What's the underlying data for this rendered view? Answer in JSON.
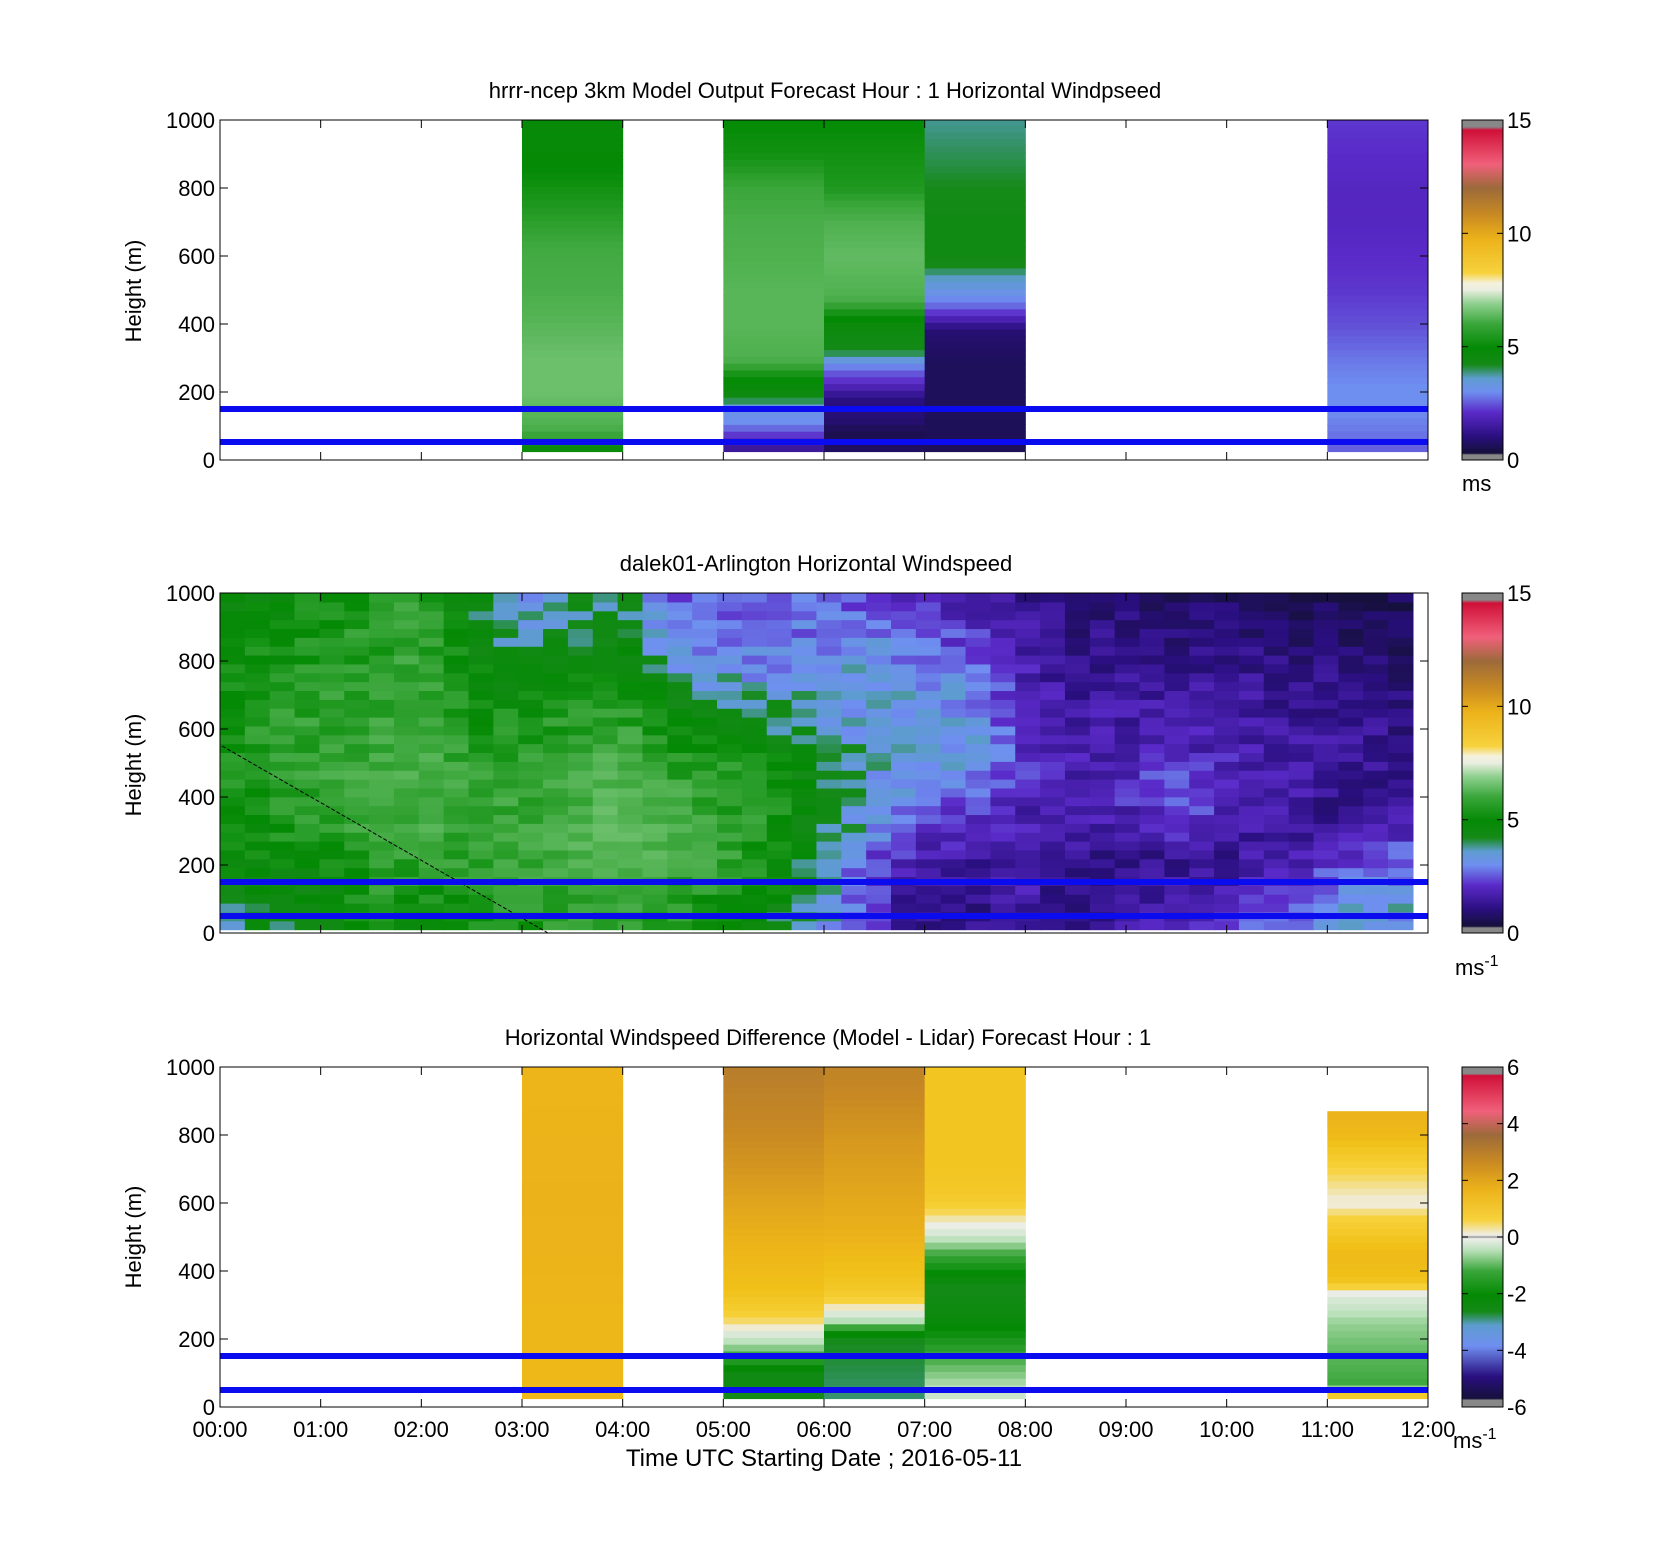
{
  "chart_data": [
    {
      "type": "heatmap",
      "title": "hrrr-ncep 3km Model Output   Forecast Hour : 1 Horizontal Windpseed",
      "xlabel": "",
      "ylabel": "Height (m)",
      "xlim": [
        0,
        12
      ],
      "ylim": [
        0,
        1000
      ],
      "yticks": [
        "0",
        "200",
        "400",
        "600",
        "800",
        "1000"
      ],
      "colorbar": {
        "min": 0,
        "max": 15,
        "ticks": [
          "0",
          "5",
          "10",
          "15"
        ],
        "unit": "ms",
        "unit_sup": "",
        "kind": "speed"
      },
      "reference_lines_m": [
        50,
        150
      ],
      "columns": [
        {
          "hour": 3,
          "bottom": 25,
          "stops": [
            [
              25,
              3.6
            ],
            [
              50,
              4.8
            ],
            [
              100,
              5.6
            ],
            [
              200,
              6.2
            ],
            [
              300,
              6.2
            ],
            [
              400,
              5.8
            ],
            [
              500,
              5.5
            ],
            [
              600,
              5.4
            ],
            [
              700,
              5.0
            ],
            [
              800,
              4.6
            ],
            [
              900,
              4.3
            ],
            [
              1000,
              4.2
            ]
          ]
        },
        {
          "hour": 5,
          "bottom": 25,
          "stops": [
            [
              25,
              1.2
            ],
            [
              60,
              1.8
            ],
            [
              110,
              2.8
            ],
            [
              150,
              3.0
            ],
            [
              200,
              4.0
            ],
            [
              250,
              4.6
            ],
            [
              300,
              5.6
            ],
            [
              400,
              5.8
            ],
            [
              500,
              5.8
            ],
            [
              600,
              5.6
            ],
            [
              700,
              5.5
            ],
            [
              800,
              5.2
            ],
            [
              900,
              4.6
            ],
            [
              1000,
              4.4
            ]
          ]
        },
        {
          "hour": 6,
          "bottom": 25,
          "stops": [
            [
              25,
              0.6
            ],
            [
              80,
              0.3
            ],
            [
              120,
              0.8
            ],
            [
              180,
              1.0
            ],
            [
              230,
              2.0
            ],
            [
              260,
              2.4
            ],
            [
              320,
              3.6
            ],
            [
              380,
              3.9
            ],
            [
              420,
              4.4
            ],
            [
              480,
              5.6
            ],
            [
              600,
              6.0
            ],
            [
              700,
              5.6
            ],
            [
              800,
              4.8
            ],
            [
              1000,
              4.4
            ]
          ]
        },
        {
          "hour": 7,
          "bottom": 25,
          "stops": [
            [
              25,
              0.4
            ],
            [
              300,
              0.5
            ],
            [
              380,
              0.8
            ],
            [
              420,
              1.8
            ],
            [
              460,
              2.6
            ],
            [
              520,
              3.2
            ],
            [
              600,
              3.8
            ],
            [
              700,
              3.8
            ],
            [
              800,
              3.6
            ],
            [
              900,
              3.5
            ],
            [
              1000,
              3.4
            ]
          ]
        },
        {
          "hour": 11,
          "bottom": 25,
          "stops": [
            [
              25,
              2.4
            ],
            [
              80,
              2.6
            ],
            [
              150,
              2.8
            ],
            [
              220,
              2.8
            ],
            [
              300,
              2.6
            ],
            [
              400,
              2.3
            ],
            [
              500,
              2.1
            ],
            [
              600,
              2.0
            ],
            [
              700,
              1.9
            ],
            [
              800,
              1.9
            ],
            [
              900,
              2.0
            ],
            [
              1000,
              2.1
            ]
          ]
        }
      ]
    },
    {
      "type": "heatmap",
      "title": "dalek01-Arlington  Horizontal Windspeed",
      "xlabel": "",
      "ylabel": "Height (m)",
      "xlim": [
        0,
        12
      ],
      "ylim": [
        0,
        1000
      ],
      "yticks": [
        "0",
        "200",
        "400",
        "600",
        "800",
        "1000"
      ],
      "colorbar": {
        "min": 0,
        "max": 15,
        "ticks": [
          "0",
          "5",
          "10",
          "15"
        ],
        "unit": "ms",
        "unit_sup": "-1",
        "kind": "speed"
      },
      "reference_lines_m": [
        50,
        150
      ],
      "profile_hours": [
        0.0,
        0.5,
        1.0,
        1.5,
        2.0,
        2.5,
        3.0,
        3.5,
        4.0,
        4.5,
        5.0,
        5.5,
        6.0,
        6.5,
        7.0,
        7.5,
        8.0,
        8.5,
        9.0,
        9.5,
        10.0,
        10.5,
        11.0,
        11.5,
        11.9
      ],
      "profile_heights": [
        0,
        100,
        200,
        300,
        400,
        500,
        600,
        700,
        800,
        900,
        1000
      ],
      "profiles": [
        [
          3.5,
          3.8,
          4.2,
          4.4,
          4.5,
          4.6,
          4.5,
          4.4,
          4.3,
          4.1,
          3.8
        ],
        [
          3.8,
          4.0,
          4.2,
          4.6,
          4.8,
          5.0,
          5.0,
          4.8,
          4.6,
          4.5,
          4.3
        ],
        [
          3.6,
          4.0,
          4.4,
          4.8,
          5.0,
          5.2,
          5.1,
          5.0,
          4.8,
          4.6,
          4.5
        ],
        [
          4.6,
          4.8,
          5.0,
          5.2,
          5.4,
          5.3,
          5.2,
          5.1,
          5.0,
          4.9,
          4.8
        ],
        [
          4.2,
          4.6,
          5.0,
          5.4,
          5.6,
          5.6,
          5.4,
          5.3,
          5.2,
          5.1,
          5.0
        ],
        [
          4.4,
          4.8,
          5.0,
          5.2,
          5.2,
          5.0,
          4.8,
          4.6,
          4.2,
          4.0,
          3.8
        ],
        [
          4.6,
          5.0,
          5.2,
          5.3,
          5.2,
          5.0,
          4.8,
          4.2,
          3.6,
          3.2,
          3.0
        ],
        [
          4.8,
          5.2,
          5.4,
          5.6,
          5.4,
          5.2,
          5.0,
          4.6,
          4.0,
          3.6,
          3.4
        ],
        [
          4.8,
          5.2,
          5.6,
          6.0,
          5.8,
          5.6,
          5.2,
          4.8,
          4.2,
          3.8,
          3.6
        ],
        [
          4.6,
          5.0,
          5.4,
          5.6,
          5.4,
          5.0,
          4.4,
          3.6,
          3.0,
          2.6,
          2.4
        ],
        [
          4.0,
          4.6,
          5.0,
          5.2,
          5.0,
          4.8,
          4.2,
          3.4,
          2.8,
          2.4,
          2.2
        ],
        [
          3.6,
          4.2,
          4.6,
          4.8,
          4.8,
          4.4,
          3.8,
          3.2,
          2.8,
          2.5,
          2.3
        ],
        [
          3.0,
          3.4,
          3.2,
          3.6,
          3.8,
          3.6,
          3.2,
          3.0,
          2.8,
          2.6,
          2.4
        ],
        [
          2.2,
          2.0,
          2.2,
          2.8,
          3.2,
          3.2,
          3.0,
          3.2,
          3.0,
          2.6,
          2.2
        ],
        [
          1.2,
          1.0,
          1.4,
          2.0,
          2.6,
          3.0,
          3.0,
          3.0,
          2.6,
          2.2,
          1.8
        ],
        [
          1.0,
          1.2,
          1.4,
          1.8,
          2.4,
          3.0,
          3.0,
          2.8,
          2.4,
          2.0,
          1.6
        ],
        [
          1.4,
          1.6,
          1.4,
          1.6,
          1.8,
          2.0,
          2.0,
          1.8,
          1.6,
          1.4,
          1.2
        ],
        [
          1.2,
          1.0,
          1.2,
          1.4,
          1.6,
          1.6,
          1.5,
          1.4,
          1.2,
          1.0,
          0.8
        ],
        [
          1.4,
          1.2,
          1.0,
          1.4,
          2.0,
          1.8,
          1.6,
          1.4,
          1.2,
          1.0,
          0.8
        ],
        [
          1.8,
          1.6,
          1.2,
          1.8,
          2.6,
          2.0,
          1.6,
          1.4,
          1.2,
          0.8,
          0.6
        ],
        [
          2.0,
          1.8,
          1.2,
          1.6,
          2.0,
          1.8,
          1.5,
          1.4,
          1.2,
          0.9,
          0.5
        ],
        [
          2.6,
          2.4,
          1.6,
          1.2,
          1.6,
          1.6,
          1.4,
          1.2,
          1.0,
          0.6,
          0.4
        ],
        [
          3.0,
          2.8,
          2.0,
          1.2,
          1.2,
          1.4,
          1.4,
          1.2,
          0.9,
          0.6,
          0.4
        ],
        [
          3.2,
          3.0,
          2.6,
          1.6,
          1.0,
          1.2,
          1.2,
          1.0,
          0.8,
          0.5,
          0.4
        ],
        [
          2.8,
          3.0,
          2.8,
          2.0,
          1.2,
          1.0,
          1.0,
          0.8,
          0.6,
          0.4,
          0.4
        ]
      ],
      "missing_height_start_m": 1000
    },
    {
      "type": "heatmap",
      "title": "Horizontal Windspeed Difference (Model - Lidar) Forecast Hour : 1",
      "xlabel": "Time UTC  Starting Date ; 2016-05-11",
      "ylabel": "Height (m)",
      "xlim": [
        0,
        12
      ],
      "ylim": [
        0,
        1000
      ],
      "yticks": [
        "0",
        "200",
        "400",
        "600",
        "800",
        "1000"
      ],
      "xticks": [
        "00:00",
        "01:00",
        "02:00",
        "03:00",
        "04:00",
        "05:00",
        "06:00",
        "07:00",
        "08:00",
        "09:00",
        "10:00",
        "11:00",
        "12:00"
      ],
      "colorbar": {
        "min": -6,
        "max": 6,
        "ticks": [
          "-6",
          "-4",
          "-2",
          "0",
          "2",
          "4",
          "6"
        ],
        "unit": "ms",
        "unit_sup": "-1",
        "kind": "diff"
      },
      "reference_lines_m": [
        50,
        150
      ],
      "columns": [
        {
          "hour": 3,
          "bottom": 25,
          "stops": [
            [
              25,
              1.4
            ],
            [
              300,
              1.5
            ],
            [
              600,
              1.6
            ],
            [
              1000,
              1.5
            ]
          ]
        },
        {
          "hour": 5,
          "bottom": 25,
          "stops": [
            [
              25,
              -3.0
            ],
            [
              100,
              -2.8
            ],
            [
              180,
              -1.0
            ],
            [
              230,
              0.0
            ],
            [
              280,
              0.6
            ],
            [
              350,
              1.2
            ],
            [
              500,
              1.6
            ],
            [
              700,
              2.0
            ],
            [
              900,
              2.4
            ],
            [
              1000,
              2.6
            ]
          ]
        },
        {
          "hour": 6,
          "bottom": 25,
          "stops": [
            [
              25,
              -3.2
            ],
            [
              200,
              -3.0
            ],
            [
              260,
              -0.6
            ],
            [
              300,
              0.2
            ],
            [
              350,
              0.9
            ],
            [
              500,
              1.6
            ],
            [
              800,
              2.0
            ],
            [
              1000,
              2.4
            ]
          ]
        },
        {
          "hour": 7,
          "bottom": 25,
          "stops": [
            [
              25,
              -0.4
            ],
            [
              60,
              -0.8
            ],
            [
              150,
              -1.6
            ],
            [
              250,
              -2.6
            ],
            [
              350,
              -3.0
            ],
            [
              450,
              -1.6
            ],
            [
              520,
              -0.2
            ],
            [
              560,
              0.2
            ],
            [
              620,
              0.8
            ],
            [
              700,
              1.0
            ],
            [
              1000,
              1.0
            ]
          ]
        },
        {
          "hour": 11,
          "bottom": 25,
          "top": 870,
          "stops": [
            [
              25,
              1.0
            ],
            [
              40,
              0.6
            ],
            [
              60,
              -1.6
            ],
            [
              150,
              -1.4
            ],
            [
              250,
              -1.0
            ],
            [
              330,
              -0.2
            ],
            [
              380,
              1.2
            ],
            [
              450,
              1.4
            ],
            [
              520,
              0.8
            ],
            [
              600,
              0.0
            ],
            [
              700,
              0.4
            ],
            [
              800,
              1.4
            ],
            [
              870,
              1.6
            ]
          ]
        }
      ]
    }
  ]
}
